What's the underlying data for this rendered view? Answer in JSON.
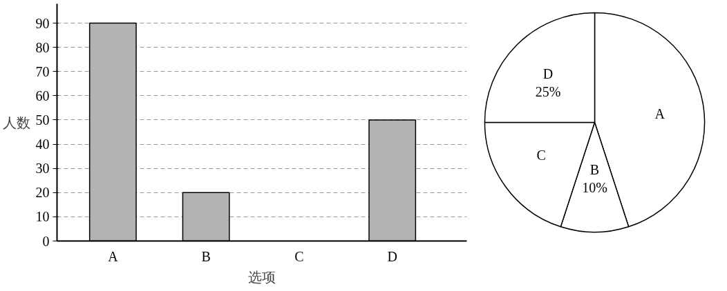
{
  "chart_data": [
    {
      "type": "bar",
      "xlabel": "选项",
      "ylabel": "人数",
      "categories": [
        "A",
        "B",
        "C",
        "D"
      ],
      "values": [
        90,
        20,
        null,
        50
      ],
      "color": "#b3b3b3",
      "ylim": [
        0,
        98
      ],
      "yticks": [
        0,
        10,
        20,
        30,
        40,
        50,
        60,
        70,
        80,
        90
      ],
      "grid": "y"
    },
    {
      "type": "pie",
      "categories": [
        "A",
        "B",
        "C",
        "D"
      ],
      "values": [
        45,
        10,
        20,
        25
      ],
      "colors": [
        "#ffffff",
        "#ffffff",
        "#ffffff",
        "#ffffff"
      ],
      "value_labels": [
        null,
        "10%",
        null,
        "25%"
      ]
    }
  ]
}
